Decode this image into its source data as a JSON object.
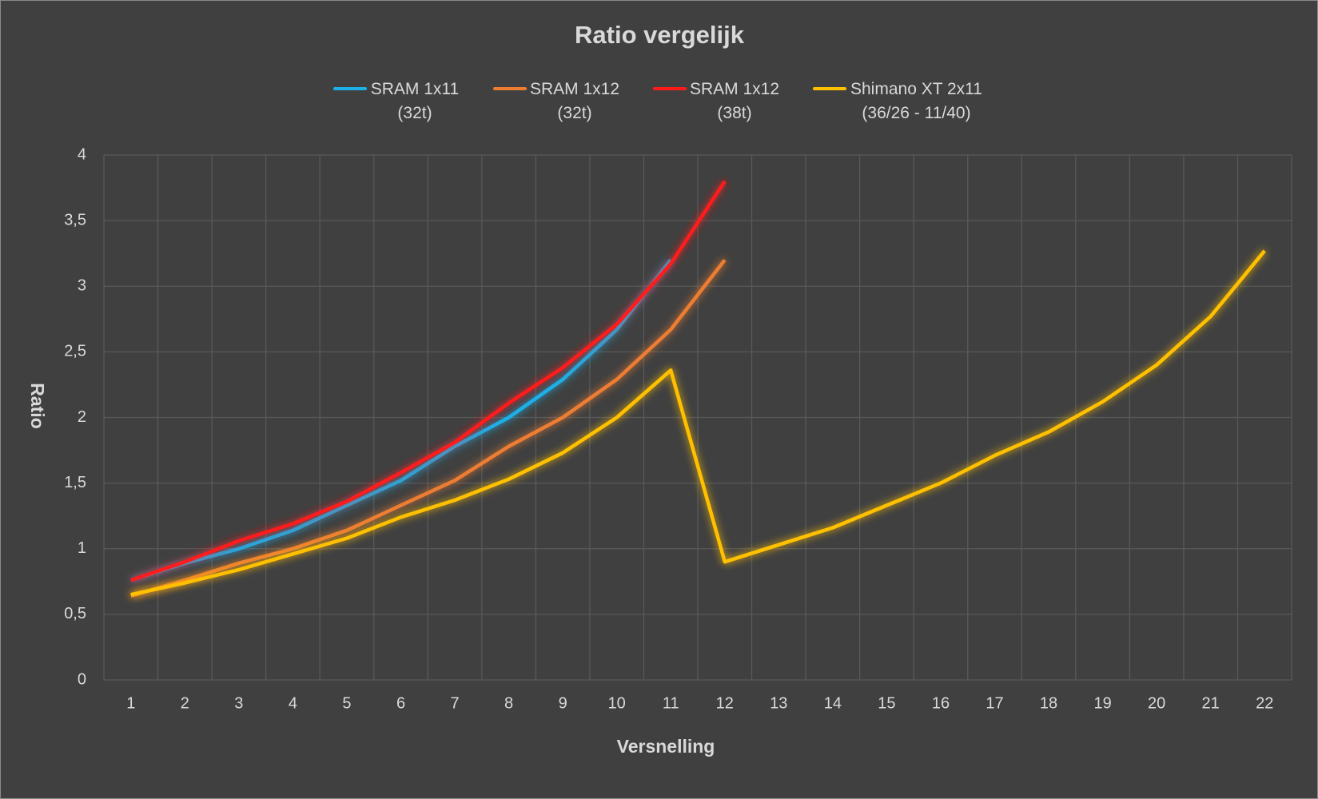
{
  "chart_data": {
    "type": "line",
    "title": "Ratio vergelijk",
    "x_label": "Versnelling",
    "y_label": "Ratio",
    "categories": [
      1,
      2,
      3,
      4,
      5,
      6,
      7,
      8,
      9,
      10,
      11,
      12,
      13,
      14,
      15,
      16,
      17,
      18,
      19,
      20,
      21,
      22
    ],
    "series": [
      {
        "name": "SRAM 1x11 (32t)",
        "color": "#1fb0e8",
        "values": [
          0.76,
          0.89,
          1.0,
          1.14,
          1.33,
          1.52,
          1.78,
          2.0,
          2.29,
          2.67,
          3.2,
          null,
          null,
          null,
          null,
          null,
          null,
          null,
          null,
          null,
          null,
          null
        ]
      },
      {
        "name": "SRAM 1x12 (32t)",
        "color": "#ed7d31",
        "values": [
          0.64,
          0.76,
          0.89,
          1.0,
          1.14,
          1.33,
          1.52,
          1.78,
          2.0,
          2.29,
          2.67,
          3.2,
          null,
          null,
          null,
          null,
          null,
          null,
          null,
          null,
          null,
          null
        ]
      },
      {
        "name": "SRAM 1x12 (38t)",
        "color": "#ff1a1a",
        "values": [
          0.76,
          0.9,
          1.06,
          1.19,
          1.36,
          1.58,
          1.81,
          2.11,
          2.38,
          2.71,
          3.17,
          3.8,
          null,
          null,
          null,
          null,
          null,
          null,
          null,
          null,
          null,
          null
        ]
      },
      {
        "name": "Shimano XT 2x11 (36/26 - 11/40)",
        "color": "#ffc000",
        "values": [
          0.65,
          0.74,
          0.84,
          0.96,
          1.08,
          1.24,
          1.37,
          1.53,
          1.73,
          2.0,
          2.36,
          0.9,
          1.03,
          1.16,
          1.33,
          1.5,
          1.71,
          1.89,
          2.12,
          2.4,
          2.77,
          3.27
        ]
      }
    ],
    "ylim": [
      0,
      4
    ],
    "yticks": [
      0,
      {
        "value": 0.5,
        "label": "0,5"
      },
      1,
      {
        "value": 1.5,
        "label": "1,5"
      },
      2,
      {
        "value": 2.5,
        "label": "2,5"
      },
      3,
      {
        "value": 3.5,
        "label": "3,5"
      },
      4
    ],
    "grid": true,
    "legend": "top"
  }
}
